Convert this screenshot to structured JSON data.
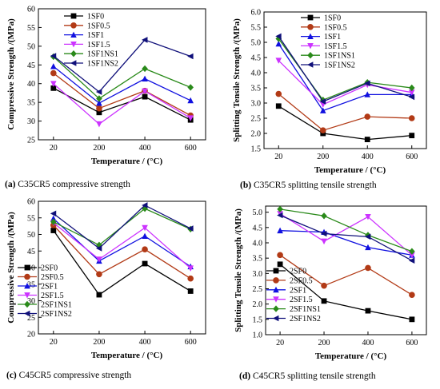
{
  "colors": {
    "SF0": "#000000",
    "SF0.5": "#b23a16",
    "SF1": "#1010e0",
    "SF1.5": "#cc33ff",
    "SF1NS1": "#2a8a1a",
    "SF1NS2": "#10107a"
  },
  "chart_data": [
    {
      "type": "line",
      "caption_letter": "(a)",
      "caption_text": " C35CR5 compressive strength",
      "xlabel": "Temperature  / (°C)",
      "ylabel": "Compressive Strength  /(MPa)",
      "categories": [
        "20",
        "200",
        "400",
        "600"
      ],
      "ylim": [
        25,
        60
      ],
      "yticks": [
        "25",
        "30",
        "35",
        "40",
        "45",
        "50",
        "55",
        "60"
      ],
      "legend_position": "top-left",
      "series": [
        {
          "name": "1SF0",
          "key": "SF0",
          "marker": "square",
          "values": [
            38.8,
            32.3,
            36.5,
            30.3
          ]
        },
        {
          "name": "1SF0.5",
          "key": "SF0.5",
          "marker": "circle",
          "values": [
            42.8,
            33.4,
            38.1,
            31.5
          ]
        },
        {
          "name": "1SF1",
          "key": "SF1",
          "marker": "triangle-up",
          "values": [
            44.6,
            34.8,
            41.3,
            35.5
          ]
        },
        {
          "name": "1SF1.5",
          "key": "SF1.5",
          "marker": "triangle-down",
          "values": [
            40.0,
            29.2,
            38.0,
            30.8
          ]
        },
        {
          "name": "1SF1NS1",
          "key": "SF1NS1",
          "marker": "diamond",
          "values": [
            47.2,
            36.0,
            44.0,
            39.0
          ]
        },
        {
          "name": "1SF1NS2",
          "key": "SF1NS2",
          "marker": "triangle-left",
          "values": [
            47.4,
            37.8,
            51.7,
            47.3
          ]
        }
      ]
    },
    {
      "type": "line",
      "caption_letter": "(b)",
      "caption_text": " C35CR5 splitting tensile strength",
      "xlabel": "Temperature  / (°C)",
      "ylabel": "Splitting Tensile Strength  /(MPa)",
      "categories": [
        "20",
        "200",
        "400",
        "600"
      ],
      "ylim": [
        1.5,
        6.0
      ],
      "yticks": [
        "1.5",
        "2.0",
        "2.5",
        "3.0",
        "3.5",
        "4.0",
        "4.5",
        "5.0",
        "5.5",
        "6.0"
      ],
      "legend_position": "top-left",
      "series": [
        {
          "name": "1SF0",
          "key": "SF0",
          "marker": "square",
          "values": [
            2.9,
            2.0,
            1.8,
            1.93
          ]
        },
        {
          "name": "1SF0.5",
          "key": "SF0.5",
          "marker": "circle",
          "values": [
            3.3,
            2.1,
            2.55,
            2.5
          ]
        },
        {
          "name": "1SF1",
          "key": "SF1",
          "marker": "triangle-up",
          "values": [
            4.95,
            2.75,
            3.28,
            3.28
          ]
        },
        {
          "name": "1SF1.5",
          "key": "SF1.5",
          "marker": "triangle-down",
          "values": [
            4.4,
            2.95,
            3.6,
            3.35
          ]
        },
        {
          "name": "1SF1NS1",
          "key": "SF1NS1",
          "marker": "diamond",
          "values": [
            5.12,
            3.1,
            3.68,
            3.5
          ]
        },
        {
          "name": "1SF1NS2",
          "key": "SF1NS2",
          "marker": "triangle-left",
          "values": [
            5.2,
            3.05,
            3.65,
            3.2
          ]
        }
      ]
    },
    {
      "type": "line",
      "caption_letter": "(c)",
      "caption_text": " C45CR5 compressive strength",
      "xlabel": "Temperature  / (°C)",
      "ylabel": "Compressive Strength  /(MPa)",
      "categories": [
        "20",
        "200",
        "400",
        "600"
      ],
      "ylim": [
        20,
        60
      ],
      "yticks": [
        "20",
        "25",
        "30",
        "35",
        "40",
        "45",
        "50",
        "55",
        "60"
      ],
      "legend_position": "bottom-left",
      "series": [
        {
          "name": "2SF0",
          "key": "SF0",
          "marker": "square",
          "values": [
            51.2,
            31.8,
            41.2,
            32.9
          ]
        },
        {
          "name": "2SF0.5",
          "key": "SF0.5",
          "marker": "circle",
          "values": [
            52.8,
            38.0,
            45.5,
            36.7
          ]
        },
        {
          "name": "2SF1",
          "key": "SF1",
          "marker": "triangle-up",
          "values": [
            54.8,
            42.0,
            49.5,
            40.3
          ]
        },
        {
          "name": "2SF1.5",
          "key": "SF1.5",
          "marker": "triangle-down",
          "values": [
            53.5,
            42.5,
            52.0,
            39.8
          ]
        },
        {
          "name": "2SF1NS1",
          "key": "SF1NS1",
          "marker": "diamond",
          "values": [
            53.8,
            46.8,
            57.8,
            51.6
          ]
        },
        {
          "name": "2SF1NS2",
          "key": "SF1NS2",
          "marker": "triangle-left",
          "values": [
            56.3,
            45.8,
            58.8,
            51.8
          ]
        }
      ]
    },
    {
      "type": "line",
      "caption_letter": "(d)",
      "caption_text": " C45CR5 splitting tensile strength",
      "xlabel": "Temperature  / (°C)",
      "ylabel": "Splitting Tensile Strength  /(MPa)",
      "categories": [
        "20",
        "200",
        "400",
        "600"
      ],
      "ylim": [
        1.0,
        5.2
      ],
      "yticks": [
        "1.0",
        "1.5",
        "2.0",
        "2.5",
        "3.0",
        "3.5",
        "4.0",
        "4.5",
        "5.0"
      ],
      "legend_position": "bottom-left",
      "series": [
        {
          "name": "2SF0",
          "key": "SF0",
          "marker": "square",
          "values": [
            3.3,
            2.1,
            1.78,
            1.5
          ]
        },
        {
          "name": "2SF0.5",
          "key": "SF0.5",
          "marker": "circle",
          "values": [
            3.6,
            2.6,
            3.18,
            2.3
          ]
        },
        {
          "name": "2SF1",
          "key": "SF1",
          "marker": "triangle-up",
          "values": [
            4.4,
            4.35,
            3.85,
            3.6
          ]
        },
        {
          "name": "2SF1.5",
          "key": "SF1.5",
          "marker": "triangle-down",
          "values": [
            4.95,
            4.05,
            4.85,
            3.6
          ]
        },
        {
          "name": "2SF1NS1",
          "key": "SF1NS1",
          "marker": "diamond",
          "values": [
            5.1,
            4.88,
            4.25,
            3.72
          ]
        },
        {
          "name": "2SF1NS2",
          "key": "SF1NS2",
          "marker": "triangle-left",
          "values": [
            4.9,
            4.3,
            4.2,
            3.42
          ]
        }
      ]
    }
  ]
}
